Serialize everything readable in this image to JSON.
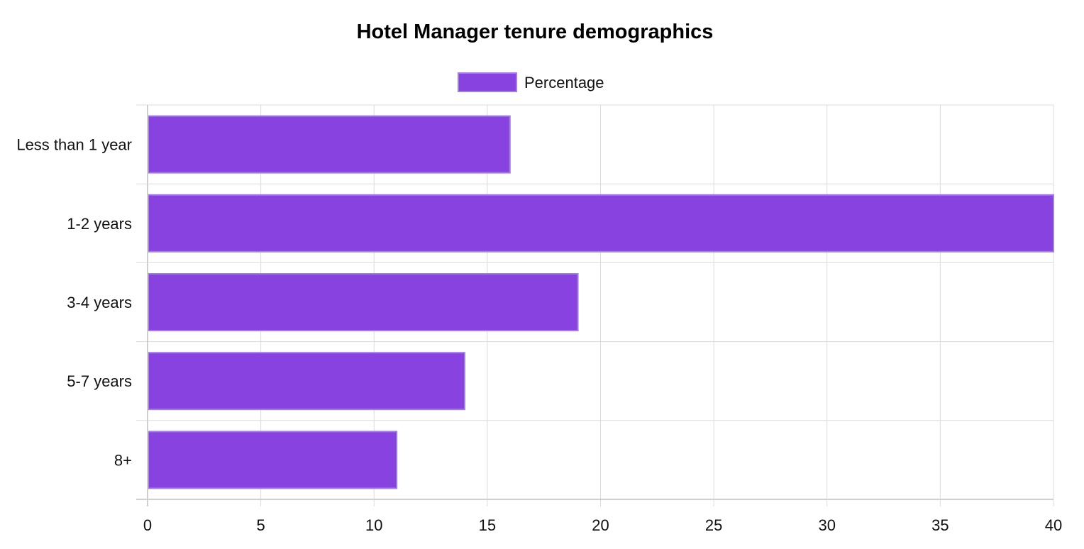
{
  "chart_data": {
    "type": "bar",
    "orientation": "horizontal",
    "title": "Hotel Manager tenure demographics",
    "categories": [
      "Less than 1 year",
      "1-2 years",
      "3-4 years",
      "5-7 years",
      "8+"
    ],
    "series": [
      {
        "name": "Percentage",
        "values": [
          16,
          40,
          19,
          14,
          11
        ],
        "color": "#8842df"
      }
    ],
    "xlim": [
      0,
      40
    ],
    "xticks": [
      0,
      5,
      10,
      15,
      20,
      25,
      30,
      35,
      40
    ],
    "grid": true,
    "legend_position": "top-center"
  }
}
